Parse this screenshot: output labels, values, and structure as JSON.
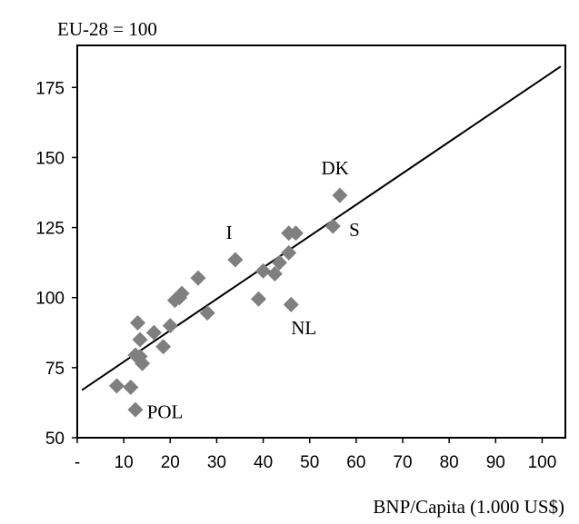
{
  "chart_data": {
    "type": "scatter",
    "ylabel": "EU-28 = 100",
    "xlabel": "BNP/Capita (1.000 US$)",
    "xlim": [
      0,
      105
    ],
    "ylim": [
      50,
      190
    ],
    "x_ticks": [
      "-",
      "10",
      "20",
      "30",
      "40",
      "50",
      "60",
      "70",
      "80",
      "90",
      "100"
    ],
    "x_tick_values": [
      0,
      10,
      20,
      30,
      40,
      50,
      60,
      70,
      80,
      90,
      100
    ],
    "y_ticks": [
      "50",
      "75",
      "100",
      "125",
      "150",
      "175"
    ],
    "y_tick_values": [
      50,
      75,
      100,
      125,
      150,
      175
    ],
    "grid": false,
    "marker_color": "#7f7f7f",
    "line_color": "#000000",
    "trendline": {
      "x": [
        1,
        104
      ],
      "y": [
        67,
        182.5
      ]
    },
    "points": [
      {
        "x": 8.5,
        "y": 68.5
      },
      {
        "x": 11.5,
        "y": 68
      },
      {
        "x": 12.5,
        "y": 60
      },
      {
        "x": 12.5,
        "y": 79.5
      },
      {
        "x": 13,
        "y": 91
      },
      {
        "x": 13.5,
        "y": 79
      },
      {
        "x": 13.5,
        "y": 85
      },
      {
        "x": 14,
        "y": 76.5
      },
      {
        "x": 16.5,
        "y": 87.5
      },
      {
        "x": 18.5,
        "y": 82.5
      },
      {
        "x": 20,
        "y": 90
      },
      {
        "x": 21,
        "y": 99
      },
      {
        "x": 22,
        "y": 100
      },
      {
        "x": 22.5,
        "y": 101.5
      },
      {
        "x": 26,
        "y": 107
      },
      {
        "x": 28,
        "y": 94.5
      },
      {
        "x": 34,
        "y": 113.5
      },
      {
        "x": 39,
        "y": 99.5
      },
      {
        "x": 40,
        "y": 109.5
      },
      {
        "x": 42.5,
        "y": 108.5
      },
      {
        "x": 43.5,
        "y": 112.5
      },
      {
        "x": 45.5,
        "y": 116
      },
      {
        "x": 45.5,
        "y": 123
      },
      {
        "x": 46,
        "y": 97.5
      },
      {
        "x": 47,
        "y": 123
      },
      {
        "x": 55,
        "y": 125.5
      },
      {
        "x": 56.5,
        "y": 136.5
      }
    ],
    "annotations": [
      {
        "text": "DK",
        "x": 52.5,
        "y": 144
      },
      {
        "text": "I",
        "x": 32,
        "y": 121
      },
      {
        "text": "S",
        "x": 58.5,
        "y": 122
      },
      {
        "text": "NL",
        "x": 46,
        "y": 87
      },
      {
        "text": "POL",
        "x": 15,
        "y": 57
      }
    ]
  }
}
